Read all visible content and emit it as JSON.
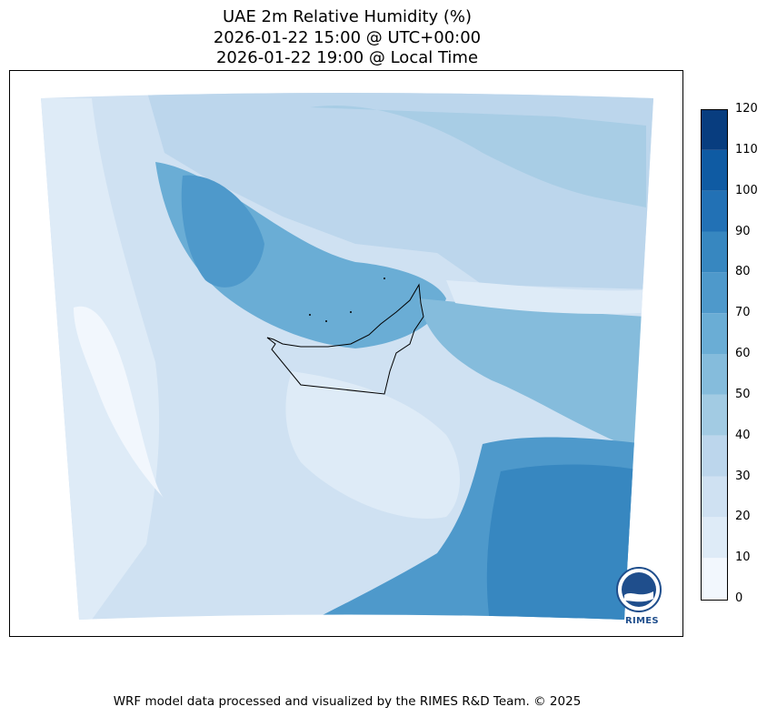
{
  "title": {
    "line1": "UAE 2m Relative Humidity (%)",
    "line2": "2026-01-22 15:00 @ UTC+00:00",
    "line3": "2026-01-22 19:00 @ Local Time"
  },
  "colorbar": {
    "ticks": [
      "0",
      "10",
      "20",
      "30",
      "40",
      "50",
      "60",
      "70",
      "80",
      "90",
      "100",
      "110",
      "120"
    ],
    "colors": [
      "#f2f7fd",
      "#deebf7",
      "#cfe1f2",
      "#bcd6ec",
      "#a2cbe3",
      "#85bcdc",
      "#6aadd5",
      "#4e99cb",
      "#3787c0",
      "#2271b5",
      "#0f5ba3",
      "#083d7f"
    ]
  },
  "logo": {
    "text": "RIMES"
  },
  "footer": "WRF model data processed and visualized by the RIMES R&D Team. © 2025"
}
